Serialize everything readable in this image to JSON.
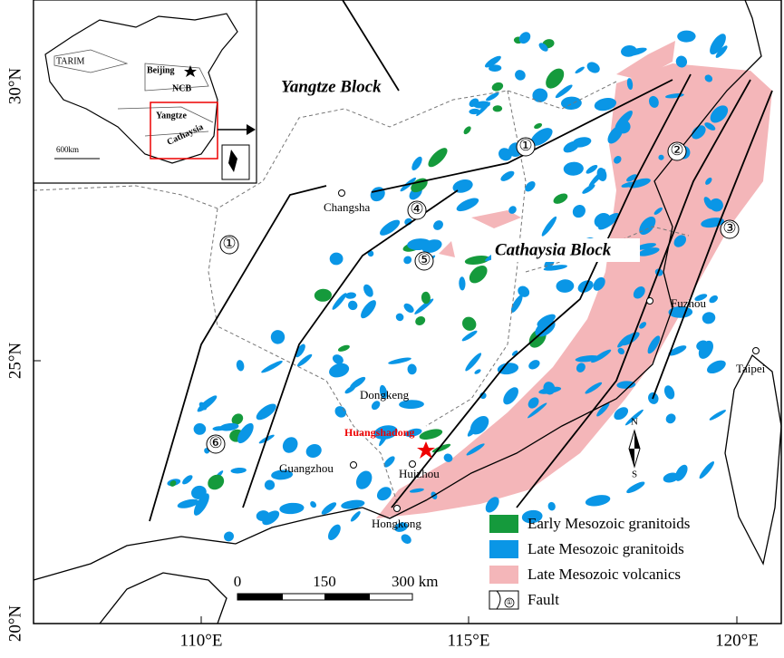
{
  "axes": {
    "lat_labels": [
      "30°N",
      "25°N",
      "20°N"
    ],
    "lon_labels": [
      "110°E",
      "115°E",
      "120°E"
    ]
  },
  "inset": {
    "labels": [
      "TARIM",
      "Beijing",
      "NCB",
      "Yangtze",
      "Cathaysia"
    ],
    "scale": "600km"
  },
  "map_labels": {
    "blocks": [
      "Yangtze Block",
      "Cathaysia Block"
    ],
    "cities": [
      "Changsha",
      "Fuzhou",
      "Taipei",
      "Dongkeng",
      "Guangzhou",
      "Huizhou",
      "Hongkong"
    ],
    "deposit": "Huangshadong"
  },
  "faults": [
    "①",
    "②",
    "③",
    "④",
    "⑤",
    "⑥",
    "①"
  ],
  "legend": {
    "items": [
      "Early Mesozoic granitoids",
      "Late Mesozoic granitoids",
      "Late Mesozoic volcanics",
      "Fault"
    ],
    "fault_symbol": "①"
  },
  "scale_bar": [
    "0",
    "150",
    "300 km"
  ],
  "north_arrow": [
    "N",
    "S"
  ]
}
